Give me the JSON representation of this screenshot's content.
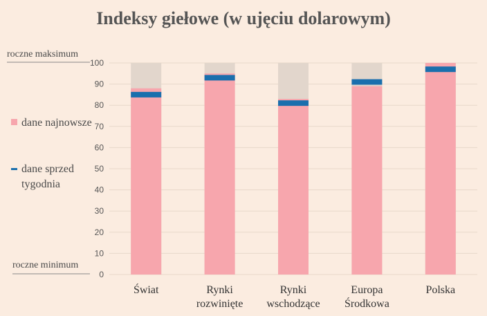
{
  "chart_data": {
    "type": "bar",
    "title": "Indeksy giełowe (w ujęciu dolarowym)",
    "categories": [
      [
        "Świat"
      ],
      [
        "Rynki",
        "rozwinięte"
      ],
      [
        "Rynki",
        "wschodzące"
      ],
      [
        "Europa",
        "Środkowa"
      ],
      [
        "Polska"
      ]
    ],
    "series": [
      {
        "name": "dane najnowsze",
        "values": [
          88,
          95,
          83,
          89,
          100
        ]
      },
      {
        "name": "dane sprzed tygodnia",
        "values": [
          85,
          93,
          81,
          91,
          97
        ]
      }
    ],
    "background_max": 100,
    "ylim": [
      0,
      100
    ],
    "yticks": [
      0,
      10,
      20,
      30,
      40,
      50,
      60,
      70,
      80,
      90,
      100
    ],
    "top_axis_label": "roczne maksimum",
    "bottom_axis_label": "roczne minimum",
    "legend_placement": "left",
    "grid": true,
    "colors": {
      "latest": "#f7a6ad",
      "week_ago": "#1a6fad",
      "range": "#e2d6cc",
      "grid": "#e8d8ca"
    }
  }
}
